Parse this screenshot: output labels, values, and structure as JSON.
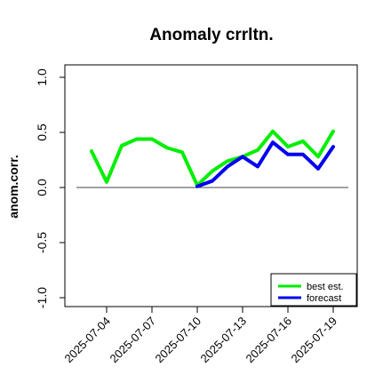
{
  "chart_data": {
    "type": "line",
    "title": "Anomaly crrltn.",
    "ylabel": "anom.corr.",
    "xlabel": "",
    "ylim": [
      -1.0,
      1.0
    ],
    "yticks": [
      "-1.0",
      "-0.5",
      "0.0",
      "0.5",
      "1.0"
    ],
    "ytick_values": [
      -1.0,
      -0.5,
      0.0,
      0.5,
      1.0
    ],
    "x": [
      "2025-07-03",
      "2025-07-04",
      "2025-07-05",
      "2025-07-06",
      "2025-07-07",
      "2025-07-08",
      "2025-07-09",
      "2025-07-10",
      "2025-07-11",
      "2025-07-12",
      "2025-07-13",
      "2025-07-14",
      "2025-07-15",
      "2025-07-16",
      "2025-07-17",
      "2025-07-18",
      "2025-07-19"
    ],
    "xtick_labels": [
      {
        "text": "2025-07-04",
        "color": "#000000"
      },
      {
        "text": "2025-07-07",
        "color": "#000000"
      },
      {
        "text": "2025-07-10",
        "color": "#228B22"
      },
      {
        "text": "2025-07-13",
        "color": "#000000"
      },
      {
        "text": "2025-07-16",
        "color": "#000000"
      },
      {
        "text": "2025-07-19",
        "color": "#000000"
      }
    ],
    "reference_line": 0.0,
    "grid": false,
    "legend_position": "bottom-right",
    "series": [
      {
        "name": "best est.",
        "color": "#00ee00",
        "x": [
          "2025-07-03",
          "2025-07-04",
          "2025-07-05",
          "2025-07-06",
          "2025-07-07",
          "2025-07-08",
          "2025-07-09",
          "2025-07-10",
          "2025-07-11",
          "2025-07-12",
          "2025-07-13",
          "2025-07-14",
          "2025-07-15",
          "2025-07-16",
          "2025-07-17",
          "2025-07-18",
          "2025-07-19"
        ],
        "values": [
          0.33,
          0.05,
          0.38,
          0.44,
          0.44,
          0.36,
          0.32,
          0.02,
          0.15,
          0.24,
          0.28,
          0.34,
          0.51,
          0.37,
          0.42,
          0.28,
          0.51
        ]
      },
      {
        "name": "forecast",
        "color": "#0000ee",
        "x": [
          "2025-07-10",
          "2025-07-11",
          "2025-07-12",
          "2025-07-13",
          "2025-07-14",
          "2025-07-15",
          "2025-07-16",
          "2025-07-17",
          "2025-07-18",
          "2025-07-19"
        ],
        "values": [
          0.01,
          0.06,
          0.19,
          0.28,
          0.19,
          0.41,
          0.3,
          0.3,
          0.17,
          0.37
        ]
      }
    ]
  }
}
